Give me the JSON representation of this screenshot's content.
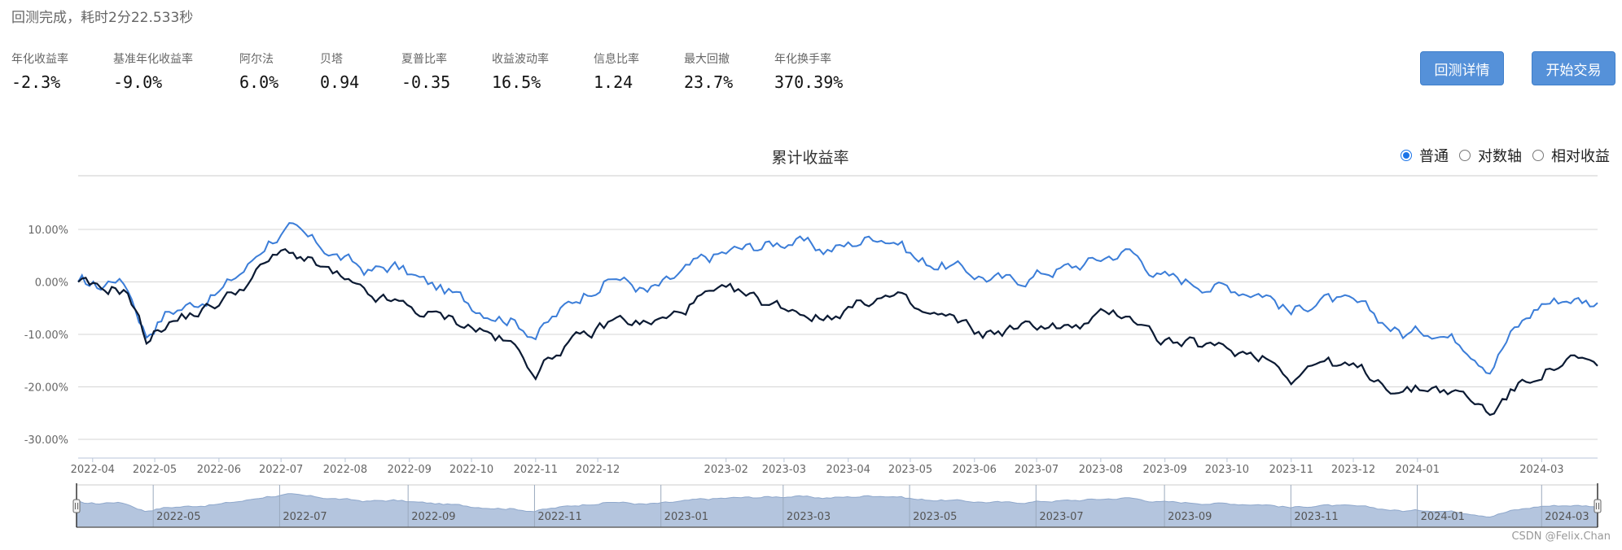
{
  "status": "回测完成，耗时2分22.533秒",
  "metrics": [
    {
      "label": "年化收益率",
      "value": "-2.3%"
    },
    {
      "label": "基准年化收益率",
      "value": "-9.0%"
    },
    {
      "label": "阿尔法",
      "value": "6.0%"
    },
    {
      "label": "贝塔",
      "value": "0.94"
    },
    {
      "label": "夏普比率",
      "value": "-0.35"
    },
    {
      "label": "收益波动率",
      "value": "16.5%"
    },
    {
      "label": "信息比率",
      "value": "1.24"
    },
    {
      "label": "最大回撤",
      "value": "23.7%"
    },
    {
      "label": "年化换手率",
      "value": "370.39%"
    }
  ],
  "buttons": {
    "details": "回测详情",
    "trade": "开始交易"
  },
  "chart_modes": {
    "selected": "普通",
    "options": [
      "普通",
      "对数轴",
      "相对收益"
    ]
  },
  "watermark": "CSDN @Felix.Chan",
  "colors": {
    "strategy": "#3b7dd8",
    "benchmark": "#0b1a33",
    "navigator_fill": "#b4c5de",
    "buttons": "#5591d9"
  },
  "chart_data": {
    "type": "line",
    "title": "累计收益率",
    "ylim": [
      -30,
      10
    ],
    "y_ticks": [
      "10.00%",
      "0.00%",
      "-10.00%",
      "-20.00%",
      "-30.00%"
    ],
    "x_range": [
      "2022-03-25",
      "2024-03-28"
    ],
    "x_ticks": [
      "2022-04",
      "2022-05",
      "2022-06",
      "2022-07",
      "2022-08",
      "2022-09",
      "2022-10",
      "2022-11",
      "2022-12",
      "2023-02",
      "2023-03",
      "2023-04",
      "2023-05",
      "2023-06",
      "2023-07",
      "2023-08",
      "2023-09",
      "2023-10",
      "2023-11",
      "2023-12",
      "2024-01",
      "2024-03"
    ],
    "navigator_ticks": [
      "2022-05",
      "2022-07",
      "2022-09",
      "2022-11",
      "2023-01",
      "2023-03",
      "2023-05",
      "2023-07",
      "2023-09",
      "2023-11",
      "2024-01",
      "2024-03"
    ],
    "series": [
      {
        "values": [
          [
            "2022-03-25",
            0
          ],
          [
            "2022-04-05",
            -1
          ],
          [
            "2022-04-12",
            1
          ],
          [
            "2022-04-18",
            -1
          ],
          [
            "2022-04-27",
            -10
          ],
          [
            "2022-05-06",
            -6
          ],
          [
            "2022-05-20",
            -4
          ],
          [
            "2022-06-01",
            -2
          ],
          [
            "2022-06-15",
            3
          ],
          [
            "2022-06-25",
            8
          ],
          [
            "2022-07-05",
            10
          ],
          [
            "2022-07-14",
            8
          ],
          [
            "2022-07-28",
            5
          ],
          [
            "2022-08-12",
            2
          ],
          [
            "2022-08-25",
            3
          ],
          [
            "2022-09-08",
            0
          ],
          [
            "2022-09-20",
            -2
          ],
          [
            "2022-10-05",
            -5
          ],
          [
            "2022-10-20",
            -7
          ],
          [
            "2022-11-01",
            -10
          ],
          [
            "2022-11-15",
            -5
          ],
          [
            "2022-11-28",
            -1
          ],
          [
            "2022-12-10",
            1
          ],
          [
            "2022-12-25",
            -2
          ],
          [
            "2023-01-05",
            0
          ],
          [
            "2023-01-20",
            4
          ],
          [
            "2023-02-05",
            6
          ],
          [
            "2023-02-20",
            7
          ],
          [
            "2023-03-05",
            8
          ],
          [
            "2023-03-20",
            6
          ],
          [
            "2023-04-01",
            7
          ],
          [
            "2023-04-15",
            9
          ],
          [
            "2023-04-25",
            8
          ],
          [
            "2023-05-05",
            4
          ],
          [
            "2023-05-20",
            3
          ],
          [
            "2023-06-05",
            1
          ],
          [
            "2023-06-20",
            0
          ],
          [
            "2023-07-05",
            2
          ],
          [
            "2023-07-20",
            3
          ],
          [
            "2023-08-05",
            5
          ],
          [
            "2023-08-15",
            6
          ],
          [
            "2023-08-30",
            1
          ],
          [
            "2023-09-15",
            0
          ],
          [
            "2023-10-01",
            -1
          ],
          [
            "2023-10-20",
            -2
          ],
          [
            "2023-11-01",
            -6
          ],
          [
            "2023-11-15",
            -3
          ],
          [
            "2023-12-05",
            -5
          ],
          [
            "2023-12-25",
            -10
          ],
          [
            "2024-01-10",
            -9
          ],
          [
            "2024-01-25",
            -12
          ],
          [
            "2024-02-05",
            -16
          ],
          [
            "2024-02-15",
            -10
          ],
          [
            "2024-03-01",
            -4
          ],
          [
            "2024-03-15",
            -3
          ],
          [
            "2024-03-28",
            -4
          ]
        ]
      },
      {
        "values": [
          [
            "2022-03-25",
            0
          ],
          [
            "2022-04-05",
            -2
          ],
          [
            "2022-04-12",
            -1
          ],
          [
            "2022-04-18",
            -2
          ],
          [
            "2022-04-27",
            -11
          ],
          [
            "2022-05-06",
            -8
          ],
          [
            "2022-05-20",
            -6
          ],
          [
            "2022-06-01",
            -4
          ],
          [
            "2022-06-15",
            0
          ],
          [
            "2022-06-25",
            4
          ],
          [
            "2022-07-05",
            6
          ],
          [
            "2022-07-14",
            4
          ],
          [
            "2022-07-28",
            1
          ],
          [
            "2022-08-12",
            -3
          ],
          [
            "2022-08-25",
            -4
          ],
          [
            "2022-09-08",
            -6
          ],
          [
            "2022-09-20",
            -7
          ],
          [
            "2022-10-05",
            -9
          ],
          [
            "2022-10-20",
            -12
          ],
          [
            "2022-11-01",
            -17
          ],
          [
            "2022-11-15",
            -12
          ],
          [
            "2022-11-28",
            -10
          ],
          [
            "2022-12-10",
            -7
          ],
          [
            "2022-12-25",
            -8
          ],
          [
            "2023-01-05",
            -7
          ],
          [
            "2023-01-20",
            -3
          ],
          [
            "2023-02-05",
            -2
          ],
          [
            "2023-02-20",
            -4
          ],
          [
            "2023-03-05",
            -5
          ],
          [
            "2023-03-20",
            -7
          ],
          [
            "2023-04-01",
            -5
          ],
          [
            "2023-04-15",
            -3
          ],
          [
            "2023-04-25",
            -3
          ],
          [
            "2023-05-05",
            -6
          ],
          [
            "2023-05-20",
            -7
          ],
          [
            "2023-06-05",
            -10
          ],
          [
            "2023-06-20",
            -9
          ],
          [
            "2023-07-05",
            -8
          ],
          [
            "2023-07-20",
            -9
          ],
          [
            "2023-08-05",
            -6
          ],
          [
            "2023-08-15",
            -6
          ],
          [
            "2023-08-30",
            -11
          ],
          [
            "2023-09-15",
            -12
          ],
          [
            "2023-10-01",
            -13
          ],
          [
            "2023-10-20",
            -14
          ],
          [
            "2023-11-01",
            -18
          ],
          [
            "2023-11-15",
            -15
          ],
          [
            "2023-12-05",
            -17
          ],
          [
            "2023-12-25",
            -21
          ],
          [
            "2024-01-10",
            -20
          ],
          [
            "2024-01-25",
            -22
          ],
          [
            "2024-02-05",
            -25
          ],
          [
            "2024-02-15",
            -21
          ],
          [
            "2024-03-01",
            -17
          ],
          [
            "2024-03-15",
            -15
          ],
          [
            "2024-03-28",
            -16
          ]
        ]
      }
    ]
  }
}
